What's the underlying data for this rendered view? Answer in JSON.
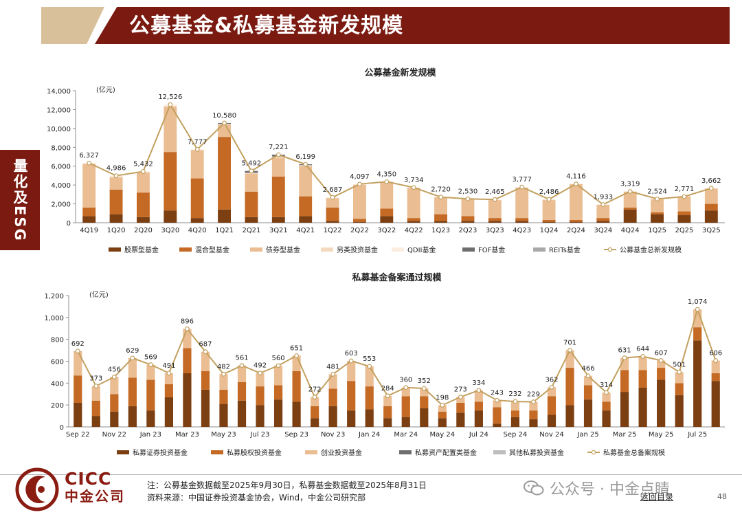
{
  "header": {
    "title": "公募基金&私募基金新发规模"
  },
  "side_tab": {
    "label": "量化及ESG"
  },
  "footer": {
    "logo_en": "CICC",
    "logo_cn": "中金公司",
    "note": "注：公募基金数据截至2025年9月30日，私募基金数据截至2025年8月31日",
    "source": "资料来源：中国证券投资基金协会，Wind，中金公司研究部",
    "watermark": "公众号 · 中金点睛",
    "back_link": "返回目录",
    "page_number": "48"
  },
  "chart_data": [
    {
      "type": "bar",
      "stacked": true,
      "title": "公募基金新发规模",
      "ylabel": "(亿元)",
      "ylim": [
        0,
        14000
      ],
      "yticks": [
        0,
        2000,
        4000,
        6000,
        8000,
        10000,
        12000,
        14000
      ],
      "grid": false,
      "legend_position": "bottom",
      "categories": [
        "4Q19",
        "1Q20",
        "2Q20",
        "3Q20",
        "4Q20",
        "1Q21",
        "2Q21",
        "3Q21",
        "4Q21",
        "1Q22",
        "2Q22",
        "3Q22",
        "4Q22",
        "1Q23",
        "2Q23",
        "3Q23",
        "4Q23",
        "1Q24",
        "2Q24",
        "3Q24",
        "4Q24",
        "1Q25",
        "2Q25",
        "3Q25"
      ],
      "series": [
        {
          "name": "股票型基金",
          "color": "#7b3f12",
          "values": [
            700,
            900,
            600,
            1300,
            500,
            1400,
            600,
            600,
            700,
            200,
            100,
            700,
            200,
            200,
            200,
            200,
            200,
            100,
            100,
            200,
            1400,
            900,
            800,
            1300
          ]
        },
        {
          "name": "混合型基金",
          "color": "#c46a24",
          "values": [
            900,
            2600,
            2600,
            6200,
            4200,
            7700,
            2700,
            4300,
            2100,
            1400,
            300,
            800,
            300,
            700,
            500,
            300,
            300,
            200,
            200,
            300,
            200,
            200,
            400,
            700
          ]
        },
        {
          "name": "债券型基金",
          "color": "#ebbd93",
          "values": [
            4600,
            1300,
            2100,
            4800,
            3000,
            1300,
            1900,
            2000,
            3200,
            1000,
            3600,
            2800,
            3200,
            1800,
            1800,
            1900,
            3200,
            2100,
            3800,
            1400,
            1700,
            1400,
            1600,
            1600
          ]
        },
        {
          "name": "另类投资基金",
          "color": "#f4d8bf",
          "values": [
            100,
            100,
            100,
            100,
            50,
            50,
            50,
            50,
            50,
            50,
            50,
            50,
            30,
            20,
            30,
            30,
            50,
            50,
            16,
            30,
            19,
            24,
            0,
            62
          ]
        },
        {
          "name": "QDII基金",
          "color": "#fbeee0",
          "values": [
            27,
            86,
            32,
            126,
            27,
            30,
            42,
            71,
            49,
            37,
            47,
            0,
            4,
            0,
            0,
            35,
            27,
            36,
            0,
            3,
            0,
            0,
            0,
            0
          ]
        },
        {
          "name": "FOF基金",
          "color": "#6e6e6e",
          "values": [
            0,
            0,
            0,
            0,
            0,
            100,
            200,
            200,
            100,
            0,
            0,
            0,
            0,
            0,
            0,
            0,
            0,
            0,
            0,
            0,
            0,
            0,
            0,
            0
          ]
        },
        {
          "name": "REITs基金",
          "color": "#a9a9a9",
          "values": [
            0,
            0,
            0,
            0,
            0,
            0,
            0,
            0,
            0,
            0,
            0,
            0,
            0,
            0,
            0,
            0,
            0,
            0,
            0,
            0,
            0,
            0,
            0,
            0
          ]
        }
      ],
      "total": {
        "name": "公募基金总新发规模",
        "color": "#c2a05f",
        "values": [
          6327,
          4986,
          5432,
          12526,
          7777,
          10580,
          5492,
          7221,
          6199,
          2687,
          4097,
          4350,
          3734,
          2720,
          2530,
          2465,
          3777,
          2486,
          4116,
          1933,
          3319,
          2524,
          2771,
          3662
        ]
      },
      "total_labels": [
        "6,327",
        "4,986",
        "5,432",
        "12,526",
        "7,777",
        "10,580",
        "5,492",
        "7,221",
        "6,199",
        "2,687",
        "4,097",
        "4,350",
        "3,734",
        "2,720",
        "2,530",
        "2,465",
        "3,777",
        "2,486",
        "4,116",
        "1,933",
        "3,319",
        "2,524",
        "2,771",
        "3,662"
      ],
      "ytick_labels": [
        "0",
        "2,000",
        "4,000",
        "6,000",
        "8,000",
        "10,000",
        "12,000",
        "14,000"
      ]
    },
    {
      "type": "bar",
      "stacked": true,
      "title": "私募基金备案通过规模",
      "ylabel": "(亿元)",
      "ylim": [
        0,
        1200
      ],
      "yticks": [
        0,
        200,
        400,
        600,
        800,
        1000,
        1200
      ],
      "grid": false,
      "legend_position": "bottom",
      "categories": [
        "Sep 22",
        "Oct 22",
        "Nov 22",
        "Dec 22",
        "Jan 23",
        "Feb 23",
        "Mar 23",
        "Apr 23",
        "May 23",
        "Jun 23",
        "Jul 23",
        "Aug 23",
        "Sep 23",
        "Oct 23",
        "Nov 23",
        "Dec 23",
        "Jan 24",
        "Feb 24",
        "Mar 24",
        "Apr 24",
        "May 24",
        "Jun 24",
        "Jul 24",
        "Aug 24",
        "Sep 24",
        "Oct 24",
        "Nov 24",
        "Dec 24",
        "Jan 25",
        "Feb 25",
        "Mar 25",
        "Apr 25",
        "May 25",
        "Jun 25",
        "Jul 25",
        "Aug 25"
      ],
      "visible_xticks": [
        "Sep 22",
        "Nov 22",
        "Jan 23",
        "Mar 23",
        "May 23",
        "Jul 23",
        "Sep 23",
        "Nov 23",
        "Jan 24",
        "Mar 24",
        "May 24",
        "Jul 24",
        "Sep 24",
        "Nov 24",
        "Jan 25",
        "Mar 25",
        "May 25",
        "Jul 25"
      ],
      "series": [
        {
          "name": "私募证券投资基金",
          "color": "#7b3f12",
          "values": [
            220,
            100,
            140,
            190,
            150,
            270,
            490,
            340,
            210,
            240,
            200,
            250,
            230,
            80,
            190,
            150,
            160,
            80,
            90,
            170,
            80,
            130,
            150,
            30,
            90,
            70,
            110,
            200,
            250,
            150,
            320,
            360,
            430,
            290,
            790,
            420
          ]
        },
        {
          "name": "私募股权投资基金",
          "color": "#c46a24",
          "values": [
            250,
            140,
            160,
            260,
            280,
            120,
            230,
            170,
            130,
            170,
            170,
            130,
            280,
            110,
            160,
            270,
            210,
            110,
            190,
            110,
            60,
            90,
            80,
            150,
            60,
            80,
            170,
            340,
            130,
            80,
            200,
            160,
            110,
            110,
            120,
            70
          ]
        },
        {
          "name": "创业投资基金",
          "color": "#ebbd93",
          "values": [
            220,
            133,
            156,
            179,
            139,
            101,
            176,
            177,
            142,
            151,
            122,
            180,
            141,
            82,
            131,
            183,
            183,
            94,
            80,
            72,
            58,
            53,
            104,
            63,
            82,
            79,
            82,
            161,
            86,
            84,
            111,
            124,
            67,
            101,
            164,
            116
          ]
        },
        {
          "name": "私募资产配置类基金",
          "color": "#6e6e6e",
          "values": [
            2,
            0,
            0,
            0,
            0,
            0,
            0,
            0,
            0,
            0,
            0,
            0,
            0,
            0,
            0,
            0,
            0,
            0,
            0,
            0,
            0,
            0,
            0,
            0,
            0,
            0,
            0,
            0,
            0,
            0,
            0,
            0,
            0,
            0,
            0,
            0
          ]
        },
        {
          "name": "其他私募投资基金",
          "color": "#bdbdbd",
          "values": [
            0,
            0,
            0,
            0,
            0,
            0,
            0,
            0,
            0,
            0,
            0,
            0,
            0,
            0,
            0,
            0,
            0,
            0,
            0,
            0,
            0,
            0,
            0,
            0,
            0,
            0,
            0,
            0,
            0,
            0,
            0,
            0,
            0,
            0,
            0,
            0
          ]
        }
      ],
      "total": {
        "name": "私募基金总备案规模",
        "color": "#c2a05f",
        "values": [
          692,
          373,
          456,
          629,
          569,
          491,
          896,
          687,
          482,
          561,
          492,
          560,
          651,
          272,
          481,
          603,
          553,
          284,
          360,
          352,
          198,
          273,
          334,
          243,
          232,
          229,
          362,
          701,
          466,
          314,
          631,
          644,
          607,
          501,
          1074,
          606
        ]
      },
      "total_labels": [
        "692",
        "373",
        "456",
        "629",
        "569",
        "491",
        "896",
        "687",
        "482",
        "561",
        "492",
        "560",
        "651",
        "272",
        "481",
        "603",
        "553",
        "284",
        "360",
        "352",
        "198",
        "273",
        "334",
        "243",
        "232",
        "229",
        "362",
        "701",
        "466",
        "314",
        "631",
        "644",
        "607",
        "501",
        "1,074",
        "606"
      ],
      "ytick_labels": [
        "0",
        "200",
        "400",
        "600",
        "800",
        "1,000",
        "1,200"
      ]
    }
  ]
}
